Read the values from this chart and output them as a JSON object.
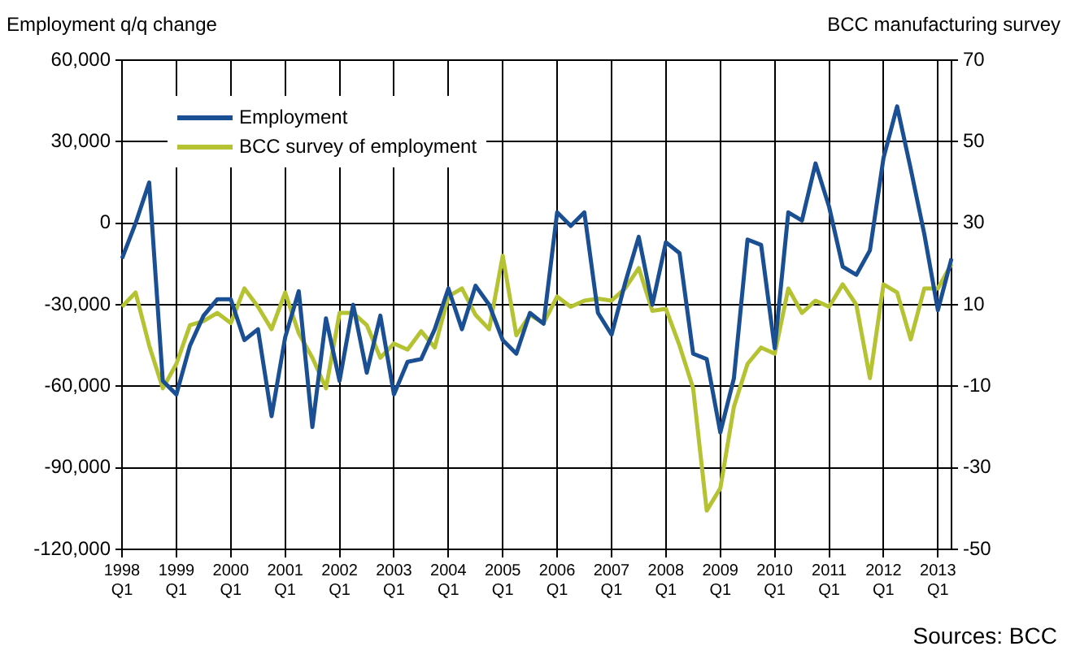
{
  "chart_data": {
    "type": "line",
    "ylabel": "Employment q/q change",
    "y2label": "BCC manufacturing survey",
    "annotations": [
      "Sources: BCC"
    ],
    "categories": [
      "1998 Q1",
      null,
      null,
      null,
      "1999 Q1",
      null,
      null,
      null,
      "2000 Q1",
      null,
      null,
      null,
      "2001 Q1",
      null,
      null,
      null,
      "2002 Q1",
      null,
      null,
      null,
      "2003 Q1",
      null,
      null,
      null,
      "2004 Q1",
      null,
      null,
      null,
      "2005 Q1",
      null,
      null,
      null,
      "2006 Q1",
      null,
      null,
      null,
      "2007 Q1",
      null,
      null,
      null,
      "2008 Q1",
      null,
      null,
      null,
      "2009 Q1",
      null,
      null,
      null,
      "2010 Q1",
      null,
      null,
      null,
      "2011 Q1",
      null,
      null,
      null,
      "2012 Q1",
      null,
      null,
      null,
      "2013 Q1",
      null
    ],
    "series": [
      {
        "name": "Employment",
        "color": "#1a4f94",
        "values": [
          -13000,
          0,
          15000,
          -58000,
          -63000,
          -45000,
          -34000,
          -28000,
          -28000,
          -43000,
          -39000,
          -71000,
          -42000,
          -25000,
          -75000,
          -35000,
          -58000,
          -30000,
          -55000,
          -34000,
          -63000,
          -51000,
          -50000,
          -39000,
          -24000,
          -39000,
          -23000,
          -30000,
          -43000,
          -48000,
          -33000,
          -37000,
          4000,
          -1000,
          4000,
          -33000,
          -41000,
          -22000,
          -5000,
          -30000,
          -7000,
          -11000,
          -48000,
          -50000,
          -77000,
          -57000,
          -6000,
          -8000,
          -46000,
          4000,
          1000,
          22000,
          6000,
          -16000,
          -19000,
          -10000,
          24000,
          43000,
          20000,
          -4000,
          -32000,
          -13000
        ]
      },
      {
        "name": "BCC survey of employment",
        "color": "#b5c232",
        "axis": "y2",
        "values": [
          9.5,
          13,
          0,
          -10.5,
          -4.5,
          5,
          6,
          8,
          5.5,
          14,
          9.5,
          4,
          13,
          3,
          -3,
          -10.5,
          8,
          8,
          5,
          -3,
          0.5,
          -1,
          3.5,
          -0.5,
          12,
          14,
          7.5,
          4,
          22,
          2.5,
          7.5,
          5.5,
          12,
          9.5,
          11,
          11.5,
          11,
          14,
          19,
          8.5,
          9,
          0,
          -10.5,
          -40.5,
          -35,
          -15,
          -4.5,
          -0.5,
          -2,
          14,
          8,
          11,
          9.5,
          15,
          10,
          -8,
          15,
          13,
          1.5,
          14,
          14,
          20
        ]
      }
    ],
    "ylim": [
      -120000,
      60000
    ],
    "yticks": [
      {
        "value": -120000,
        "label": "-120,000"
      },
      {
        "value": -90000,
        "label": "-90,000"
      },
      {
        "value": -60000,
        "label": "-60,000"
      },
      {
        "value": -30000,
        "label": "-30,000"
      },
      0,
      {
        "value": 30000,
        "label": "30,000"
      },
      {
        "value": 60000,
        "label": "60,000"
      }
    ],
    "y2lim": [
      -50,
      70
    ],
    "y2ticks": [
      -50,
      -30,
      -10,
      10,
      30,
      50,
      70
    ],
    "grid": true,
    "legend": "top left",
    "marker": "none",
    "line_style": "solid"
  }
}
